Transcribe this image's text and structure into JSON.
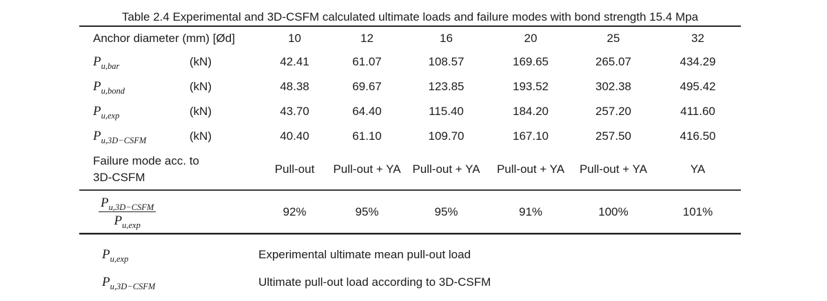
{
  "colors": {
    "text": "#1b1b1b",
    "rule": "#262626"
  },
  "title": "Table 2.4 Experimental and 3D-CSFM calculated ultimate loads and failure modes with bond strength 15.4 Mpa",
  "table": {
    "header": {
      "label": "Anchor diameter (mm) [Ød]",
      "columns": [
        "10",
        "12",
        "16",
        "20",
        "25",
        "32"
      ]
    },
    "rows": [
      {
        "symbol_base": "P",
        "symbol_sub": "u,bar",
        "unit": "(kN)",
        "values": [
          "42.41",
          "61.07",
          "108.57",
          "169.65",
          "265.07",
          "434.29"
        ]
      },
      {
        "symbol_base": "P",
        "symbol_sub": "u,bond",
        "unit": "(kN)",
        "values": [
          "48.38",
          "69.67",
          "123.85",
          "193.52",
          "302.38",
          "495.42"
        ]
      },
      {
        "symbol_base": "P",
        "symbol_sub": "u,exp",
        "unit": "(kN)",
        "values": [
          "43.70",
          "64.40",
          "115.40",
          "184.20",
          "257.20",
          "411.60"
        ]
      },
      {
        "symbol_base": "P",
        "symbol_sub": "u,3D−CSFM",
        "unit": "(kN)",
        "values": [
          "40.40",
          "61.10",
          "109.70",
          "167.10",
          "257.50",
          "416.50"
        ]
      }
    ],
    "failure_row": {
      "label_line1": "Failure mode acc. to",
      "label_line2": "3D-CSFM",
      "values": [
        "Pull-out",
        "Pull-out + YA",
        "Pull-out + YA",
        "Pull-out + YA",
        "Pull-out + YA",
        "YA"
      ]
    },
    "ratio_row": {
      "numerator_base": "P",
      "numerator_sub": "u,3D−CSFM",
      "denominator_base": "P",
      "denominator_sub": "u,exp",
      "values": [
        "92%",
        "95%",
        "95%",
        "91%",
        "100%",
        "101%"
      ]
    }
  },
  "footnotes": [
    {
      "symbol_base": "P",
      "symbol_sub": "u,exp",
      "description": "Experimental ultimate mean pull-out load"
    },
    {
      "symbol_base": "P",
      "symbol_sub": "u,3D−CSFM",
      "description": "Ultimate pull-out load according to 3D-CSFM"
    }
  ]
}
